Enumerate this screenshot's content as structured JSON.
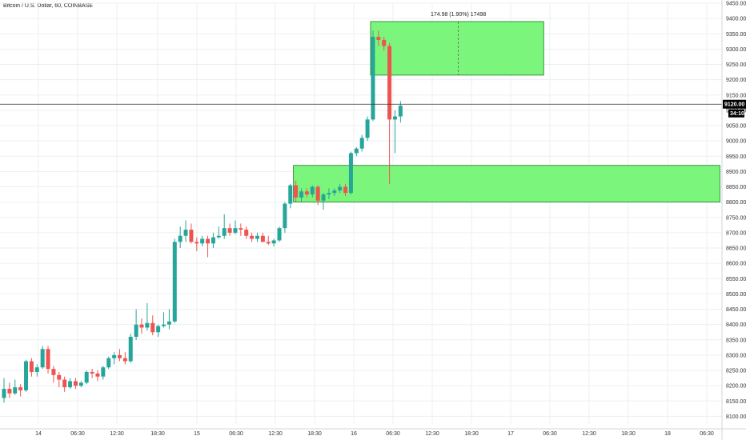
{
  "title": "Bitcoin / U.S. Dollar, 60, COINBASE",
  "colors": {
    "up": "#26a69a",
    "down": "#ef5350",
    "zone_fill": "#7cf57c",
    "zone_stroke": "#1b7a1b",
    "price_line": "#333333",
    "tag_bg": "#000000"
  },
  "price_tag": {
    "price": "9120.00",
    "countdown": "34:10"
  },
  "annotation": {
    "text": "174.98 (1.90%) 17498"
  },
  "chart_data": {
    "type": "candlestick",
    "title": "Bitcoin / U.S. Dollar, 60, COINBASE",
    "ylim": [
      8075,
      9450
    ],
    "y_ticks": [
      "8100.00",
      "8150.00",
      "8200.00",
      "8250.00",
      "8300.00",
      "8350.00",
      "8400.00",
      "8450.00",
      "8500.00",
      "8550.00",
      "8600.00",
      "8650.00",
      "8700.00",
      "8750.00",
      "8800.00",
      "8850.00",
      "8900.00",
      "8950.00",
      "9000.00",
      "9050.00",
      "9100.00",
      "9150.00",
      "9200.00",
      "9250.00",
      "9300.00",
      "9350.00",
      "9400.00",
      "9450.00"
    ],
    "x_ticks": [
      "14",
      "06:30",
      "12:30",
      "18:30",
      "15",
      "06:30",
      "12:30",
      "18:30",
      "16",
      "06:30",
      "12:30",
      "18:30",
      "17",
      "06:30",
      "12:30",
      "18:30",
      "18",
      "06:30"
    ],
    "last_price": 9120,
    "candles": [
      {
        "o": 8160,
        "h": 8225,
        "l": 8145,
        "c": 8190
      },
      {
        "o": 8190,
        "h": 8210,
        "l": 8160,
        "c": 8175
      },
      {
        "o": 8175,
        "h": 8220,
        "l": 8170,
        "c": 8195
      },
      {
        "o": 8195,
        "h": 8205,
        "l": 8165,
        "c": 8185
      },
      {
        "o": 8185,
        "h": 8285,
        "l": 8180,
        "c": 8280
      },
      {
        "o": 8280,
        "h": 8290,
        "l": 8230,
        "c": 8245
      },
      {
        "o": 8245,
        "h": 8270,
        "l": 8230,
        "c": 8260
      },
      {
        "o": 8260,
        "h": 8330,
        "l": 8255,
        "c": 8320
      },
      {
        "o": 8320,
        "h": 8330,
        "l": 8240,
        "c": 8255
      },
      {
        "o": 8255,
        "h": 8265,
        "l": 8210,
        "c": 8235
      },
      {
        "o": 8235,
        "h": 8245,
        "l": 8195,
        "c": 8220
      },
      {
        "o": 8220,
        "h": 8230,
        "l": 8180,
        "c": 8195
      },
      {
        "o": 8195,
        "h": 8225,
        "l": 8190,
        "c": 8215
      },
      {
        "o": 8215,
        "h": 8225,
        "l": 8190,
        "c": 8200
      },
      {
        "o": 8200,
        "h": 8215,
        "l": 8195,
        "c": 8210
      },
      {
        "o": 8210,
        "h": 8250,
        "l": 8205,
        "c": 8245
      },
      {
        "o": 8245,
        "h": 8255,
        "l": 8225,
        "c": 8240
      },
      {
        "o": 8240,
        "h": 8250,
        "l": 8215,
        "c": 8230
      },
      {
        "o": 8230,
        "h": 8265,
        "l": 8220,
        "c": 8260
      },
      {
        "o": 8260,
        "h": 8295,
        "l": 8255,
        "c": 8290
      },
      {
        "o": 8290,
        "h": 8310,
        "l": 8270,
        "c": 8300
      },
      {
        "o": 8300,
        "h": 8320,
        "l": 8280,
        "c": 8290
      },
      {
        "o": 8290,
        "h": 8310,
        "l": 8270,
        "c": 8280
      },
      {
        "o": 8280,
        "h": 8370,
        "l": 8275,
        "c": 8360
      },
      {
        "o": 8360,
        "h": 8450,
        "l": 8350,
        "c": 8400
      },
      {
        "o": 8400,
        "h": 8420,
        "l": 8370,
        "c": 8390
      },
      {
        "o": 8390,
        "h": 8470,
        "l": 8380,
        "c": 8405
      },
      {
        "o": 8405,
        "h": 8430,
        "l": 8365,
        "c": 8375
      },
      {
        "o": 8375,
        "h": 8400,
        "l": 8360,
        "c": 8395
      },
      {
        "o": 8395,
        "h": 8440,
        "l": 8390,
        "c": 8400
      },
      {
        "o": 8400,
        "h": 8450,
        "l": 8385,
        "c": 8410
      },
      {
        "o": 8410,
        "h": 8680,
        "l": 8405,
        "c": 8670
      },
      {
        "o": 8670,
        "h": 8720,
        "l": 8650,
        "c": 8690
      },
      {
        "o": 8690,
        "h": 8740,
        "l": 8670,
        "c": 8710
      },
      {
        "o": 8710,
        "h": 8730,
        "l": 8665,
        "c": 8670
      },
      {
        "o": 8670,
        "h": 8685,
        "l": 8640,
        "c": 8665
      },
      {
        "o": 8665,
        "h": 8690,
        "l": 8655,
        "c": 8680
      },
      {
        "o": 8680,
        "h": 8690,
        "l": 8620,
        "c": 8665
      },
      {
        "o": 8665,
        "h": 8700,
        "l": 8650,
        "c": 8685
      },
      {
        "o": 8685,
        "h": 8720,
        "l": 8680,
        "c": 8690
      },
      {
        "o": 8690,
        "h": 8760,
        "l": 8680,
        "c": 8715
      },
      {
        "o": 8715,
        "h": 8730,
        "l": 8690,
        "c": 8700
      },
      {
        "o": 8700,
        "h": 8740,
        "l": 8695,
        "c": 8715
      },
      {
        "o": 8715,
        "h": 8730,
        "l": 8690,
        "c": 8710
      },
      {
        "o": 8710,
        "h": 8720,
        "l": 8680,
        "c": 8690
      },
      {
        "o": 8690,
        "h": 8700,
        "l": 8670,
        "c": 8680
      },
      {
        "o": 8680,
        "h": 8700,
        "l": 8670,
        "c": 8690
      },
      {
        "o": 8690,
        "h": 8700,
        "l": 8670,
        "c": 8670
      },
      {
        "o": 8670,
        "h": 8690,
        "l": 8660,
        "c": 8665
      },
      {
        "o": 8665,
        "h": 8680,
        "l": 8655,
        "c": 8675
      },
      {
        "o": 8675,
        "h": 8720,
        "l": 8670,
        "c": 8715
      },
      {
        "o": 8715,
        "h": 8800,
        "l": 8700,
        "c": 8795
      },
      {
        "o": 8795,
        "h": 8860,
        "l": 8780,
        "c": 8855
      },
      {
        "o": 8855,
        "h": 8870,
        "l": 8800,
        "c": 8815
      },
      {
        "o": 8815,
        "h": 8845,
        "l": 8800,
        "c": 8835
      },
      {
        "o": 8835,
        "h": 8845,
        "l": 8815,
        "c": 8825
      },
      {
        "o": 8825,
        "h": 8855,
        "l": 8815,
        "c": 8850
      },
      {
        "o": 8850,
        "h": 8855,
        "l": 8790,
        "c": 8805
      },
      {
        "o": 8805,
        "h": 8830,
        "l": 8775,
        "c": 8825
      },
      {
        "o": 8825,
        "h": 8845,
        "l": 8810,
        "c": 8830
      },
      {
        "o": 8830,
        "h": 8845,
        "l": 8820,
        "c": 8838
      },
      {
        "o": 8838,
        "h": 8860,
        "l": 8830,
        "c": 8850
      },
      {
        "o": 8850,
        "h": 8860,
        "l": 8820,
        "c": 8830
      },
      {
        "o": 8830,
        "h": 8965,
        "l": 8825,
        "c": 8960
      },
      {
        "o": 8960,
        "h": 8980,
        "l": 8950,
        "c": 8975
      },
      {
        "o": 8975,
        "h": 9020,
        "l": 8965,
        "c": 9010
      },
      {
        "o": 9010,
        "h": 9080,
        "l": 9000,
        "c": 9070
      },
      {
        "o": 9070,
        "h": 9360,
        "l": 9065,
        "c": 9340
      },
      {
        "o": 9340,
        "h": 9360,
        "l": 9310,
        "c": 9330
      },
      {
        "o": 9330,
        "h": 9340,
        "l": 9295,
        "c": 9310
      },
      {
        "o": 9310,
        "h": 9320,
        "l": 8860,
        "c": 9070
      },
      {
        "o": 9070,
        "h": 9100,
        "l": 8960,
        "c": 9080
      },
      {
        "o": 9080,
        "h": 9130,
        "l": 9060,
        "c": 9115
      }
    ],
    "zones": [
      {
        "from_candle": 67,
        "to_candle": 98,
        "y_low": 9215,
        "y_high": 9390
      },
      {
        "from_candle": 53,
        "to_candle": 130,
        "y_low": 8800,
        "y_high": 8920
      }
    ]
  }
}
